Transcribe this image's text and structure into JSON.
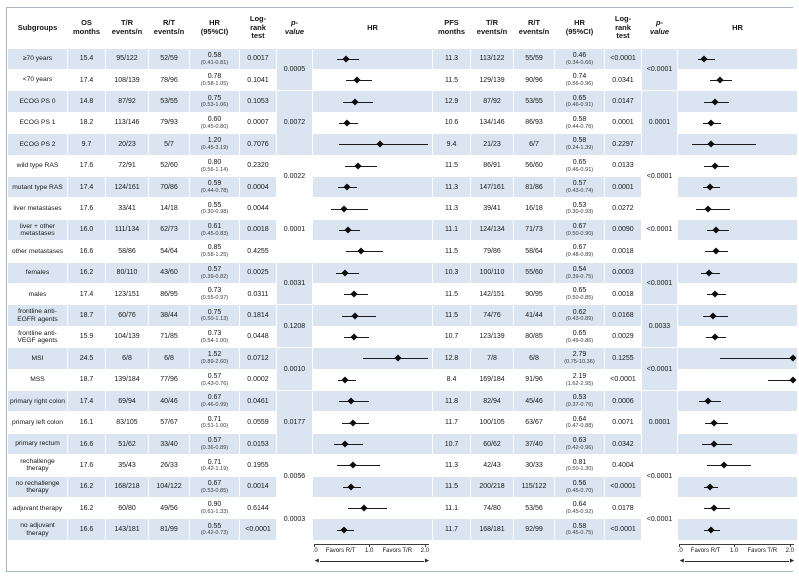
{
  "columns": {
    "subgroup": "Subgroups",
    "os": [
      "OS\nmonths",
      "T/R\nevents/n",
      "R/T\nevents/n",
      "HR\n(95%CI)",
      "Log-\nrank\ntest",
      "p-\nvalue",
      "HR"
    ],
    "pfs": [
      "PFS\nmonths",
      "T/R\nevents/n",
      "R/T\nevents/n",
      "HR\n(95%CI)",
      "Log-\nrank\ntest",
      "p-\nvalue",
      "HR"
    ]
  },
  "axis": {
    "ticks": [
      "0.0",
      "1.0",
      "2.0"
    ],
    "favors_left": "Favors R/T",
    "favors_right": "Favors T/R"
  },
  "chart_data": {
    "type": "table",
    "subtype": "forest-plot",
    "hr_axis_range": [
      0,
      2
    ],
    "rows": [
      {
        "label": "≥70 years",
        "os": {
          "months": "15.4",
          "tr": "95/122",
          "rt": "52/59",
          "hr": "0.58",
          "ci": "(0.41-0.81)",
          "logrank": "0.0017"
        },
        "pfs": {
          "months": "11.3",
          "tr": "113/122",
          "rt": "55/59",
          "hr": "0.46",
          "ci": "(0.34-0.66)",
          "logrank": "<0.0001"
        }
      },
      {
        "label": "<70 years",
        "os": {
          "months": "17.4",
          "tr": "108/139",
          "rt": "78/96",
          "hr": "0.78",
          "ci": "(0.58-1.05)",
          "logrank": "0.1041"
        },
        "pfs": {
          "months": "11.5",
          "tr": "129/139",
          "rt": "90/96",
          "hr": "0.74",
          "ci": "(0.56-0.96)",
          "logrank": "0.0341"
        }
      },
      {
        "label": "ECOG PS 0",
        "os": {
          "months": "14.8",
          "tr": "87/92",
          "rt": "53/55",
          "hr": "0.75",
          "ci": "(0.53-1.06)",
          "logrank": "0.1053"
        },
        "pfs": {
          "months": "12.9",
          "tr": "87/92",
          "rt": "53/55",
          "hr": "0.65",
          "ci": "(0.46-0.91)",
          "logrank": "0.0147"
        }
      },
      {
        "label": "ECOG PS 1",
        "os": {
          "months": "18.2",
          "tr": "113/146",
          "rt": "79/93",
          "hr": "0.60",
          "ci": "(0.45-0.80)",
          "logrank": "0.0007"
        },
        "pfs": {
          "months": "10.6",
          "tr": "134/146",
          "rt": "86/93",
          "hr": "0.58",
          "ci": "(0.44-0.76)",
          "logrank": "0.0001"
        }
      },
      {
        "label": "ECOG PS 2",
        "os": {
          "months": "9.7",
          "tr": "20/23",
          "rt": "5/7",
          "hr": "1.20",
          "ci": "(0.45-3.19)",
          "logrank": "0.7076"
        },
        "pfs": {
          "months": "9.4",
          "tr": "21/23",
          "rt": "6/7",
          "hr": "0.58",
          "ci": "(0.24-1.39)",
          "logrank": "0.2297"
        }
      },
      {
        "label": "wild type RAS",
        "os": {
          "months": "17.6",
          "tr": "72/91",
          "rt": "52/60",
          "hr": "0.80",
          "ci": "(0.56-1.14)",
          "logrank": "0.2320"
        },
        "pfs": {
          "months": "11.5",
          "tr": "86/91",
          "rt": "56/60",
          "hr": "0.65",
          "ci": "(0.46-0.91)",
          "logrank": "0.0133"
        }
      },
      {
        "label": "mutant type RAS",
        "os": {
          "months": "17.4",
          "tr": "124/161",
          "rt": "70/86",
          "hr": "0.59",
          "ci": "(0.44-0.78)",
          "logrank": "0.0004"
        },
        "pfs": {
          "months": "11.3",
          "tr": "147/161",
          "rt": "81/86",
          "hr": "0.57",
          "ci": "(0.43-0.74)",
          "logrank": "0.0001"
        }
      },
      {
        "label": "liver metastases",
        "os": {
          "months": "17.6",
          "tr": "33/41",
          "rt": "14/18",
          "hr": "0.55",
          "ci": "(0.30-0.98)",
          "logrank": "0.0044"
        },
        "pfs": {
          "months": "11.3",
          "tr": "39/41",
          "rt": "16/18",
          "hr": "0.53",
          "ci": "(0.30-0.93)",
          "logrank": "0.0272"
        }
      },
      {
        "label": "liver + other metastases",
        "os": {
          "months": "16.0",
          "tr": "111/134",
          "rt": "62/73",
          "hr": "0.61",
          "ci": "(0.45-0.83)",
          "logrank": "0.0018"
        },
        "pfs": {
          "months": "11.1",
          "tr": "124/134",
          "rt": "71/73",
          "hr": "0.67",
          "ci": "(0.50-0.90)",
          "logrank": "0.0090"
        }
      },
      {
        "label": "other metastases",
        "os": {
          "months": "16.6",
          "tr": "58/86",
          "rt": "54/64",
          "hr": "0.85",
          "ci": "(0.58-1.25)",
          "logrank": "0.4255"
        },
        "pfs": {
          "months": "11.5",
          "tr": "79/86",
          "rt": "58/64",
          "hr": "0.67",
          "ci": "(0.48-0.89)",
          "logrank": "0.0018"
        }
      },
      {
        "label": "females",
        "os": {
          "months": "16.2",
          "tr": "80/110",
          "rt": "43/60",
          "hr": "0.57",
          "ci": "(0.39-0.82)",
          "logrank": "0.0025"
        },
        "pfs": {
          "months": "10.3",
          "tr": "100/110",
          "rt": "55/60",
          "hr": "0.54",
          "ci": "(0.39-0.75)",
          "logrank": "0.0003"
        }
      },
      {
        "label": "males",
        "os": {
          "months": "17.4",
          "tr": "123/151",
          "rt": "86/95",
          "hr": "0.73",
          "ci": "(0.55-0.97)",
          "logrank": "0.0311"
        },
        "pfs": {
          "months": "11.5",
          "tr": "142/151",
          "rt": "90/95",
          "hr": "0.65",
          "ci": "(0.50-0.85)",
          "logrank": "0.0018"
        }
      },
      {
        "label": "frontline anti-EGFR agents",
        "os": {
          "months": "18.7",
          "tr": "60/76",
          "rt": "38/44",
          "hr": "0.75",
          "ci": "(0.50-1.13)",
          "logrank": "0.1814"
        },
        "pfs": {
          "months": "11.5",
          "tr": "74/76",
          "rt": "41/44",
          "hr": "0.62",
          "ci": "(0.43-0.89)",
          "logrank": "0.0168"
        }
      },
      {
        "label": "frontline anti-VEGF agents",
        "os": {
          "months": "15.9",
          "tr": "104/139",
          "rt": "71/85",
          "hr": "0.73",
          "ci": "(0.54-1.00)",
          "logrank": "0.0448"
        },
        "pfs": {
          "months": "10.7",
          "tr": "123/139",
          "rt": "80/85",
          "hr": "0.65",
          "ci": "(0.49-0.86)",
          "logrank": "0.0029"
        }
      },
      {
        "label": "MSI",
        "os": {
          "months": "24.5",
          "tr": "6/8",
          "rt": "6/8",
          "hr": "1.52",
          "ci": "(0.89-2.60)",
          "logrank": "0.0712"
        },
        "pfs": {
          "months": "12.8",
          "tr": "7/8",
          "rt": "6/8",
          "hr": "2.79",
          "ci": "(0.75-10.36)",
          "logrank": "0.1255"
        }
      },
      {
        "label": "MSS",
        "os": {
          "months": "18.7",
          "tr": "139/184",
          "rt": "77/96",
          "hr": "0.57",
          "ci": "(0.43-0.76)",
          "logrank": "0.0002"
        },
        "pfs": {
          "months": "8.4",
          "tr": "169/184",
          "rt": "91/96",
          "hr": "2.19",
          "ci": "(1.62-2.95)",
          "logrank": "<0.0001"
        }
      },
      {
        "label": "primary right colon",
        "os": {
          "months": "17.4",
          "tr": "69/94",
          "rt": "40/46",
          "hr": "0.67",
          "ci": "(0.46-0.99)",
          "logrank": "0.0461"
        },
        "pfs": {
          "months": "11.8",
          "tr": "82/94",
          "rt": "45/46",
          "hr": "0.53",
          "ci": "(0.37-0.76)",
          "logrank": "0.0006"
        }
      },
      {
        "label": "primary left colon",
        "os": {
          "months": "16.1",
          "tr": "83/105",
          "rt": "57/67",
          "hr": "0.71",
          "ci": "(0.51-1.00)",
          "logrank": "0.0559"
        },
        "pfs": {
          "months": "11.7",
          "tr": "100/105",
          "rt": "63/67",
          "hr": "0.64",
          "ci": "(0.47-0.88)",
          "logrank": "0.0071"
        }
      },
      {
        "label": "primary rectum",
        "os": {
          "months": "16.6",
          "tr": "51/62",
          "rt": "33/40",
          "hr": "0.57",
          "ci": "(0.36-0.89)",
          "logrank": "0.0153"
        },
        "pfs": {
          "months": "10.7",
          "tr": "60/62",
          "rt": "37/40",
          "hr": "0.63",
          "ci": "(0.42-0.96)",
          "logrank": "0.0342"
        }
      },
      {
        "label": "rechallenge therapy",
        "os": {
          "months": "17.6",
          "tr": "35/43",
          "rt": "26/33",
          "hr": "0.71",
          "ci": "(0.42-1.19)",
          "logrank": "0.1955"
        },
        "pfs": {
          "months": "11.3",
          "tr": "42/43",
          "rt": "30/33",
          "hr": "0.81",
          "ci": "(0.50-1.30)",
          "logrank": "0.4004"
        }
      },
      {
        "label": "no rechallenge therapy",
        "os": {
          "months": "16.2",
          "tr": "168/218",
          "rt": "104/122",
          "hr": "0.67",
          "ci": "(0.53-0.85)",
          "logrank": "0.0014"
        },
        "pfs": {
          "months": "11.5",
          "tr": "200/218",
          "rt": "115/122",
          "hr": "0.56",
          "ci": "(0.45-0.70)",
          "logrank": "<0.0001"
        }
      },
      {
        "label": "adjuvant therapy",
        "os": {
          "months": "16.2",
          "tr": "60/80",
          "rt": "49/56",
          "hr": "0.90",
          "ci": "(0.61-1.33)",
          "logrank": "0.6144"
        },
        "pfs": {
          "months": "11.1",
          "tr": "74/80",
          "rt": "53/56",
          "hr": "0.64",
          "ci": "(0.45-0.92)",
          "logrank": "0.0178"
        }
      },
      {
        "label": "no adjuvant therapy",
        "os": {
          "months": "16.6",
          "tr": "143/181",
          "rt": "81/99",
          "hr": "0.55",
          "ci": "(0.42-0.73)",
          "logrank": "<0.0001"
        },
        "pfs": {
          "months": "11.7",
          "tr": "168/181",
          "rt": "92/99",
          "hr": "0.58",
          "ci": "(0.45-0.75)",
          "logrank": "<0.0001"
        }
      }
    ],
    "groups": [
      {
        "start": 0,
        "span": 2,
        "os_p": "0.0005",
        "pfs_p": "<0.0001"
      },
      {
        "start": 2,
        "span": 3,
        "os_p": "0.0072",
        "pfs_p": "0.0001"
      },
      {
        "start": 5,
        "span": 2,
        "os_p": "0.0022",
        "pfs_p": "<0.0001"
      },
      {
        "start": 7,
        "span": 3,
        "os_p": "0.0001",
        "pfs_p": "<0.0001"
      },
      {
        "start": 10,
        "span": 2,
        "os_p": "0.0031",
        "pfs_p": "<0.0001"
      },
      {
        "start": 12,
        "span": 2,
        "os_p": "0.1208",
        "pfs_p": "0.0033"
      },
      {
        "start": 14,
        "span": 2,
        "os_p": "0.0010",
        "pfs_p": "<0.0001"
      },
      {
        "start": 16,
        "span": 3,
        "os_p": "0.0177",
        "pfs_p": "0.0001"
      },
      {
        "start": 19,
        "span": 2,
        "os_p": "0.0056",
        "pfs_p": "<0.0001"
      },
      {
        "start": 21,
        "span": 2,
        "os_p": "0.0003",
        "pfs_p": "<0.0001"
      }
    ]
  }
}
